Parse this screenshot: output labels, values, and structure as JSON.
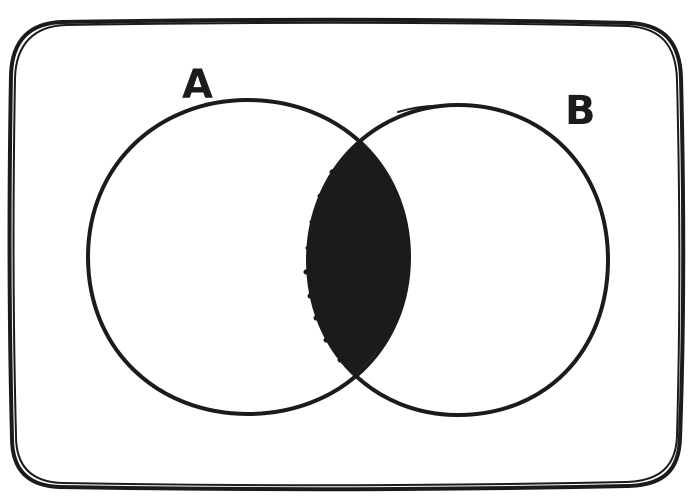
{
  "diagram": {
    "type": "venn",
    "sets": [
      {
        "id": "A",
        "label": "A"
      },
      {
        "id": "B",
        "label": "B"
      }
    ],
    "shaded_region": "A ∩ B",
    "universe_box": true,
    "colors": {
      "ink": "#1b1b1b",
      "background": "#ffffff"
    }
  }
}
